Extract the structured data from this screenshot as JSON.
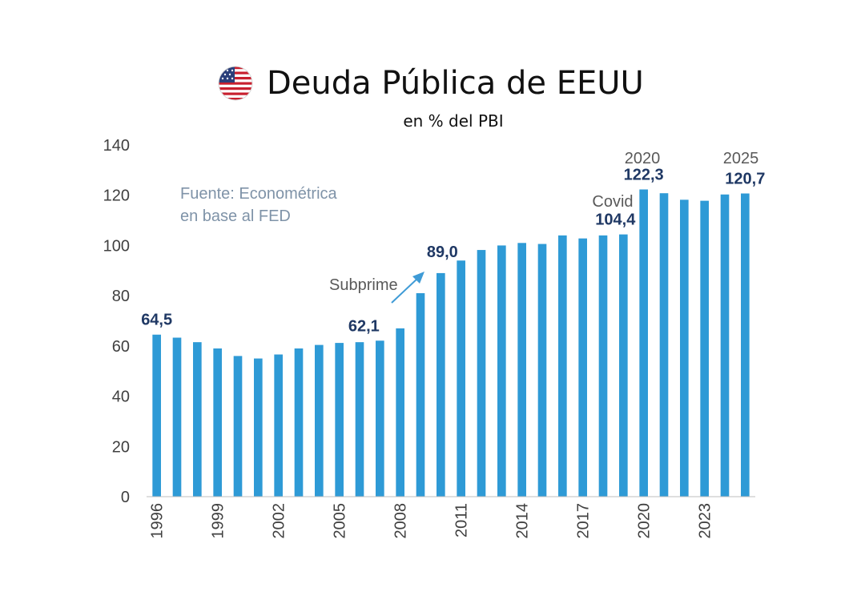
{
  "header": {
    "title": "Deuda Pública de EEUU",
    "subtitle": "en % del PBI",
    "flag_icon": "us-flag-icon"
  },
  "source_note": {
    "line1": "Fuente: Econométrica",
    "line2": "en base al FED"
  },
  "annotations": {
    "subprime": "Subprime",
    "covid": "Covid",
    "year_2020": "2020",
    "year_2025": "2025"
  },
  "colors": {
    "bar": "#2e9ad6",
    "label": "#1f3864",
    "arrow": "#3f9bd6",
    "source": "#7f93a8"
  },
  "chart_data": {
    "type": "bar",
    "title": "Deuda Pública de EEUU",
    "subtitle": "en % del PBI",
    "xlabel": "",
    "ylabel": "",
    "ylim": [
      0,
      140
    ],
    "yticks": [
      0,
      20,
      40,
      60,
      80,
      100,
      120,
      140
    ],
    "grid": false,
    "categories": [
      "1996",
      "1997",
      "1998",
      "1999",
      "2000",
      "2001",
      "2002",
      "2003",
      "2004",
      "2005",
      "2006",
      "2007",
      "2008",
      "2009",
      "2010",
      "2011",
      "2012",
      "2013",
      "2014",
      "2015",
      "2016",
      "2017",
      "2018",
      "2019",
      "2020",
      "2021",
      "2022",
      "2023",
      "2024",
      "2025"
    ],
    "xtick_labels": [
      "1996",
      "1999",
      "2002",
      "2005",
      "2008",
      "2011",
      "2014",
      "2017",
      "2020",
      "2023"
    ],
    "values": [
      64.5,
      63.3,
      61.5,
      59.0,
      56.0,
      55.0,
      56.6,
      59.0,
      60.4,
      61.2,
      61.5,
      62.1,
      67.0,
      81.0,
      89.0,
      94.0,
      98.2,
      100.0,
      101.0,
      100.6,
      104.0,
      102.8,
      104.0,
      104.4,
      122.3,
      120.8,
      118.2,
      117.8,
      120.3,
      120.7
    ],
    "data_labels": [
      {
        "category": "1996",
        "text": "64,5"
      },
      {
        "category": "2007",
        "text": "62,1"
      },
      {
        "category": "2010",
        "text": "89,0"
      },
      {
        "category": "2019",
        "text": "104,4"
      },
      {
        "category": "2020",
        "text": "122,3"
      },
      {
        "category": "2025",
        "text": "120,7"
      }
    ]
  }
}
